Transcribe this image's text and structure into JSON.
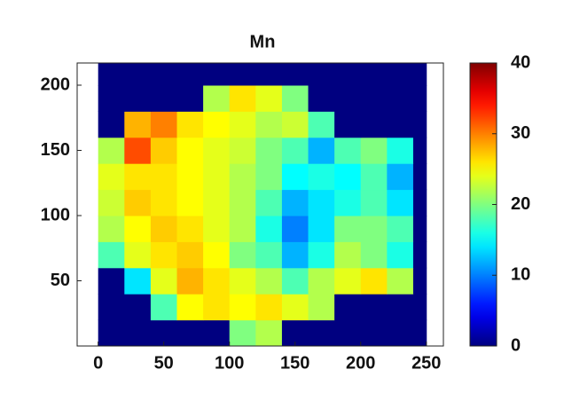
{
  "chart_data": {
    "type": "heatmap",
    "title": "Mn",
    "colormap": "jet",
    "x_bins": [
      0,
      20,
      40,
      60,
      80,
      100,
      120,
      140,
      160,
      180,
      200,
      220,
      240,
      250
    ],
    "y_bins": [
      0,
      20,
      40,
      60,
      80,
      100,
      120,
      140,
      160,
      180,
      200,
      220
    ],
    "values": [
      [
        0,
        0,
        0,
        0,
        0,
        20,
        22,
        0,
        0,
        0,
        0,
        0,
        0
      ],
      [
        0,
        0,
        18,
        25,
        26,
        25,
        26,
        24,
        22,
        0,
        0,
        0,
        0
      ],
      [
        0,
        14,
        24,
        28,
        26,
        24,
        22,
        18,
        22,
        24,
        26,
        22,
        0
      ],
      [
        18,
        24,
        26,
        27,
        25,
        20,
        18,
        12,
        16,
        22,
        20,
        16,
        0
      ],
      [
        22,
        25,
        27,
        26,
        24,
        22,
        16,
        10,
        14,
        20,
        20,
        18,
        0
      ],
      [
        23,
        27,
        26,
        25,
        24,
        22,
        18,
        12,
        14,
        16,
        18,
        14,
        0
      ],
      [
        24,
        26,
        26,
        25,
        24,
        22,
        20,
        15,
        16,
        15,
        18,
        12,
        0
      ],
      [
        22,
        32,
        27,
        25,
        24,
        23,
        20,
        18,
        12,
        18,
        20,
        16,
        0
      ],
      [
        0,
        28,
        30,
        26,
        25,
        24,
        22,
        23,
        18,
        0,
        0,
        0,
        0
      ],
      [
        0,
        0,
        0,
        0,
        22,
        26,
        24,
        20,
        0,
        0,
        0,
        0,
        0
      ],
      [
        0,
        0,
        0,
        0,
        0,
        0,
        0,
        0,
        0,
        0,
        0,
        0,
        0
      ]
    ],
    "xlim": [
      -16,
      263
    ],
    "ylim": [
      0,
      217
    ],
    "xticks": [
      0,
      50,
      100,
      150,
      200,
      250
    ],
    "yticks": [
      50,
      100,
      150,
      200
    ],
    "clim": [
      0,
      40
    ],
    "cticks": [
      0,
      10,
      20,
      30,
      40
    ]
  }
}
